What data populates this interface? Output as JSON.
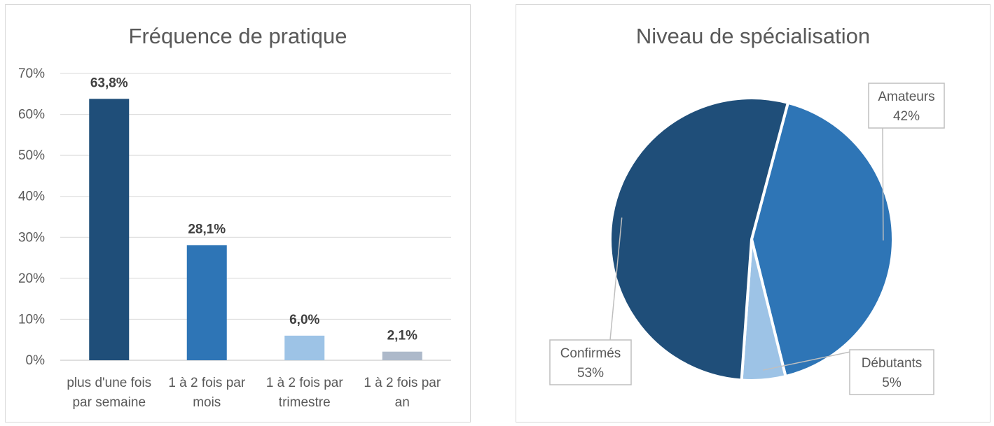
{
  "chart_data": [
    {
      "type": "bar",
      "title": "Fréquence de pratique",
      "categories": [
        [
          "plus d'une fois",
          "par semaine"
        ],
        [
          "1 à 2 fois par",
          "mois"
        ],
        [
          "1 à 2 fois par",
          "trimestre"
        ],
        [
          "1 à 2 fois par",
          "an"
        ]
      ],
      "values": [
        63.8,
        28.1,
        6.0,
        2.1
      ],
      "data_labels": [
        "63,8%",
        "28,1%",
        "6,0%",
        "2,1%"
      ],
      "colors": [
        "#1f4e79",
        "#2e75b6",
        "#9dc3e6",
        "#adb9ca"
      ],
      "yticks": [
        "0%",
        "10%",
        "20%",
        "30%",
        "40%",
        "50%",
        "60%",
        "70%"
      ],
      "ylim": [
        0,
        70
      ],
      "grid": true,
      "xlabel": "",
      "ylabel": ""
    },
    {
      "type": "pie",
      "title": "Niveau de spécialisation",
      "slices": [
        {
          "name": "Amateurs",
          "value": 42,
          "label": "42%",
          "color": "#2e75b6"
        },
        {
          "name": "Débutants",
          "value": 5,
          "label": "5%",
          "color": "#9dc3e6"
        },
        {
          "name": "Confirmés",
          "value": 53,
          "label": "53%",
          "color": "#1f4e79"
        }
      ]
    }
  ]
}
